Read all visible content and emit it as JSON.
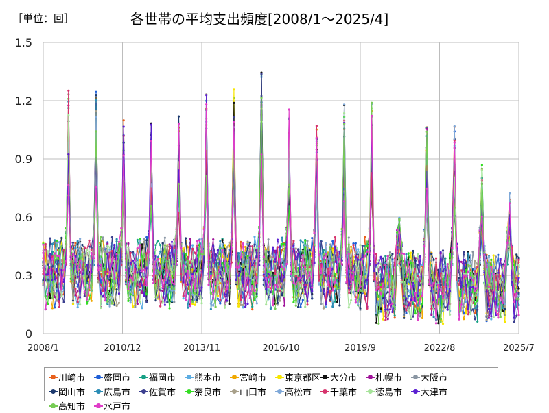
{
  "unit_label": "［単位：回］",
  "chart_data": {
    "type": "line",
    "title": "各世帯の平均支出頻度[2008/1～2025/4]",
    "ylim": [
      0,
      1.5
    ],
    "y_ticks": [
      "0",
      "0.3",
      "0.6",
      "0.9",
      "1.2",
      "1.5"
    ],
    "x_tick_labels": [
      "2008/1",
      "2010/12",
      "2013/11",
      "2016/10",
      "2019/9",
      "2022/8",
      "2025/7"
    ],
    "x_start": "2008/1",
    "x_end": "2025/7",
    "grid": true,
    "legend_position": "bottom",
    "peaks": [
      1.27,
      1.25,
      1.18,
      1.1,
      1.13,
      1.27,
      1.26,
      1.38,
      1.16,
      1.11,
      1.21,
      1.24,
      0.62,
      1.12,
      1.07,
      0.91,
      0.8
    ],
    "series": [
      {
        "name": "川崎市",
        "color": "#e8601c"
      },
      {
        "name": "盛岡市",
        "color": "#1f5fd6"
      },
      {
        "name": "福岡市",
        "color": "#16a085"
      },
      {
        "name": "熊本市",
        "color": "#5dade2"
      },
      {
        "name": "宮崎市",
        "color": "#f0a800"
      },
      {
        "name": "東京都区部",
        "color": "#f7e600"
      },
      {
        "name": "大分市",
        "color": "#111111"
      },
      {
        "name": "札幌市",
        "color": "#a0139a"
      },
      {
        "name": "大阪市",
        "color": "#8a96a3"
      },
      {
        "name": "岡山市",
        "color": "#1d3a6e"
      },
      {
        "name": "広島市",
        "color": "#2a8cb5"
      },
      {
        "name": "佐賀市",
        "color": "#3b3f8f"
      },
      {
        "name": "奈良市",
        "color": "#33dd22"
      },
      {
        "name": "山口市",
        "color": "#a8a08a"
      },
      {
        "name": "高松市",
        "color": "#7fa8d8"
      },
      {
        "name": "千葉市",
        "color": "#d6336c"
      },
      {
        "name": "徳島市",
        "color": "#a6e39a"
      },
      {
        "name": "大津市",
        "color": "#5a1fd1"
      },
      {
        "name": "高知市",
        "color": "#77cc55"
      },
      {
        "name": "水戸市",
        "color": "#e03cc8"
      }
    ]
  }
}
